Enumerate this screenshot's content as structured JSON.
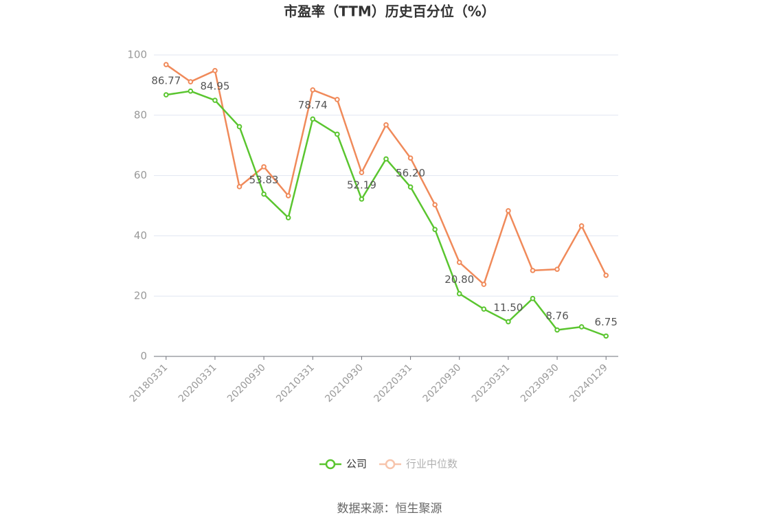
{
  "chart_data": {
    "type": "line",
    "title": "市盈率（TTM）历史百分位（%）",
    "categories": [
      "20180331",
      null,
      "20200331",
      null,
      "20200930",
      null,
      "20210331",
      null,
      "20210930",
      null,
      "20220331",
      null,
      "20220930",
      null,
      "20230331",
      null,
      "20230930",
      null,
      "20240129"
    ],
    "series": [
      {
        "name": "公司",
        "color": "#5ac52f",
        "values": [
          86.77,
          88.0,
          84.95,
          76.2,
          53.83,
          46.0,
          78.74,
          73.7,
          52.19,
          65.5,
          56.2,
          42.1,
          20.8,
          15.7,
          11.5,
          19.2,
          8.76,
          9.8,
          6.75
        ],
        "value_labels": [
          "86.77",
          null,
          "84.95",
          null,
          "53.83",
          null,
          "78.74",
          null,
          "52.19",
          null,
          "56.20",
          null,
          "20.80",
          null,
          "11.50",
          null,
          "8.76",
          null,
          "6.75"
        ]
      },
      {
        "name": "行业中位数",
        "color": "#f08a5a",
        "values": [
          96.8,
          91.1,
          94.8,
          56.3,
          62.9,
          53.3,
          88.4,
          85.2,
          61.0,
          76.8,
          65.8,
          50.3,
          31.2,
          23.9,
          48.3,
          28.5,
          28.9,
          43.3,
          26.9
        ]
      }
    ],
    "ylim": [
      0,
      100
    ],
    "yticks": [
      0,
      20,
      40,
      60,
      80,
      100
    ],
    "grid": true,
    "legend": "bottom",
    "source": "数据来源：恒生聚源"
  }
}
